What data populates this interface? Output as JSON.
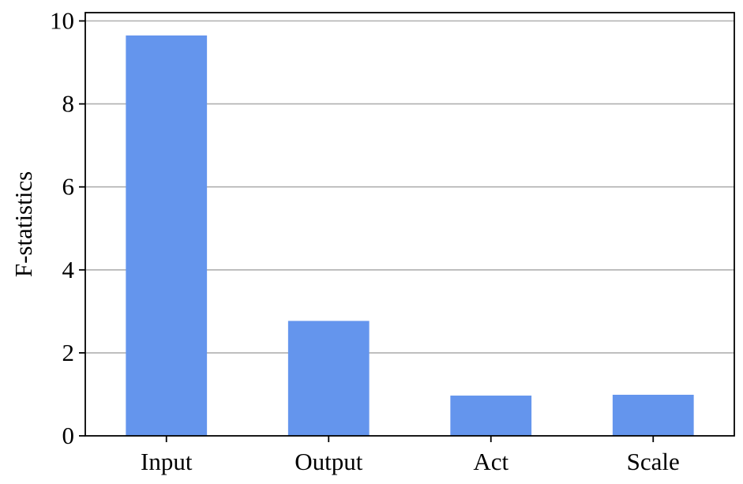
{
  "chart_data": {
    "type": "bar",
    "title": "",
    "xlabel": "",
    "ylabel": "F-statistics",
    "categories": [
      "Input",
      "Output",
      "Act",
      "Scale"
    ],
    "values": [
      9.65,
      2.77,
      0.97,
      0.99
    ],
    "ylim": [
      0,
      10.2
    ],
    "yticks": [
      0,
      2,
      4,
      6,
      8,
      10
    ],
    "grid": "horizontal",
    "legend": "none",
    "colors": {
      "bar": "#6495ED",
      "grid": "#b0b0b0",
      "axis": "#000000"
    }
  }
}
